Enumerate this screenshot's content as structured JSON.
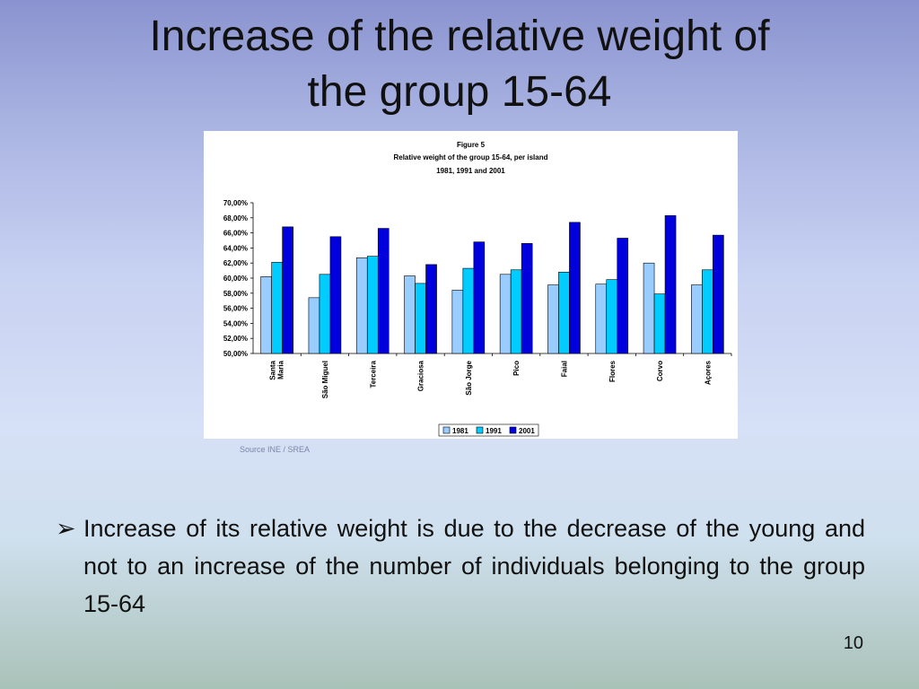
{
  "slide": {
    "title_line1": "Increase of the relative weight of",
    "title_line2": "the group 15-64",
    "source": "Source INE / SREA",
    "bullet_marker": "➢",
    "bullet_text": "Increase of its relative weight is due to the decrease of the young and not to an increase of the number of individuals belonging to the group 15-64",
    "page_number": "10"
  },
  "chart_data": {
    "type": "bar",
    "title": "Figure 5",
    "subtitle": "Relative weight of the group 15-64, per island",
    "subtitle2": "1981, 1991 and 2001",
    "categories": [
      "Santa Maria",
      "São Miguel",
      "Terceira",
      "Graciosa",
      "São Jorge",
      "Pico",
      "Faial",
      "Flores",
      "Corvo",
      "Açores"
    ],
    "series": [
      {
        "name": "1981",
        "color": "#99ccff",
        "values": [
          60.2,
          57.4,
          62.7,
          60.3,
          58.4,
          60.5,
          59.1,
          59.2,
          62.0,
          59.1
        ]
      },
      {
        "name": "1991",
        "color": "#00ccff",
        "values": [
          62.1,
          60.5,
          62.9,
          59.3,
          61.3,
          61.1,
          60.8,
          59.8,
          57.9,
          61.1
        ]
      },
      {
        "name": "2001",
        "color": "#0000dd",
        "values": [
          66.8,
          65.5,
          66.6,
          61.8,
          64.8,
          64.6,
          67.4,
          65.3,
          68.3,
          65.7
        ]
      }
    ],
    "ylim": [
      50,
      70
    ],
    "yticks": [
      "50,00%",
      "52,00%",
      "54,00%",
      "56,00%",
      "58,00%",
      "60,00%",
      "62,00%",
      "64,00%",
      "66,00%",
      "68,00%",
      "70,00%"
    ],
    "grid": false,
    "legend": "bottom"
  }
}
